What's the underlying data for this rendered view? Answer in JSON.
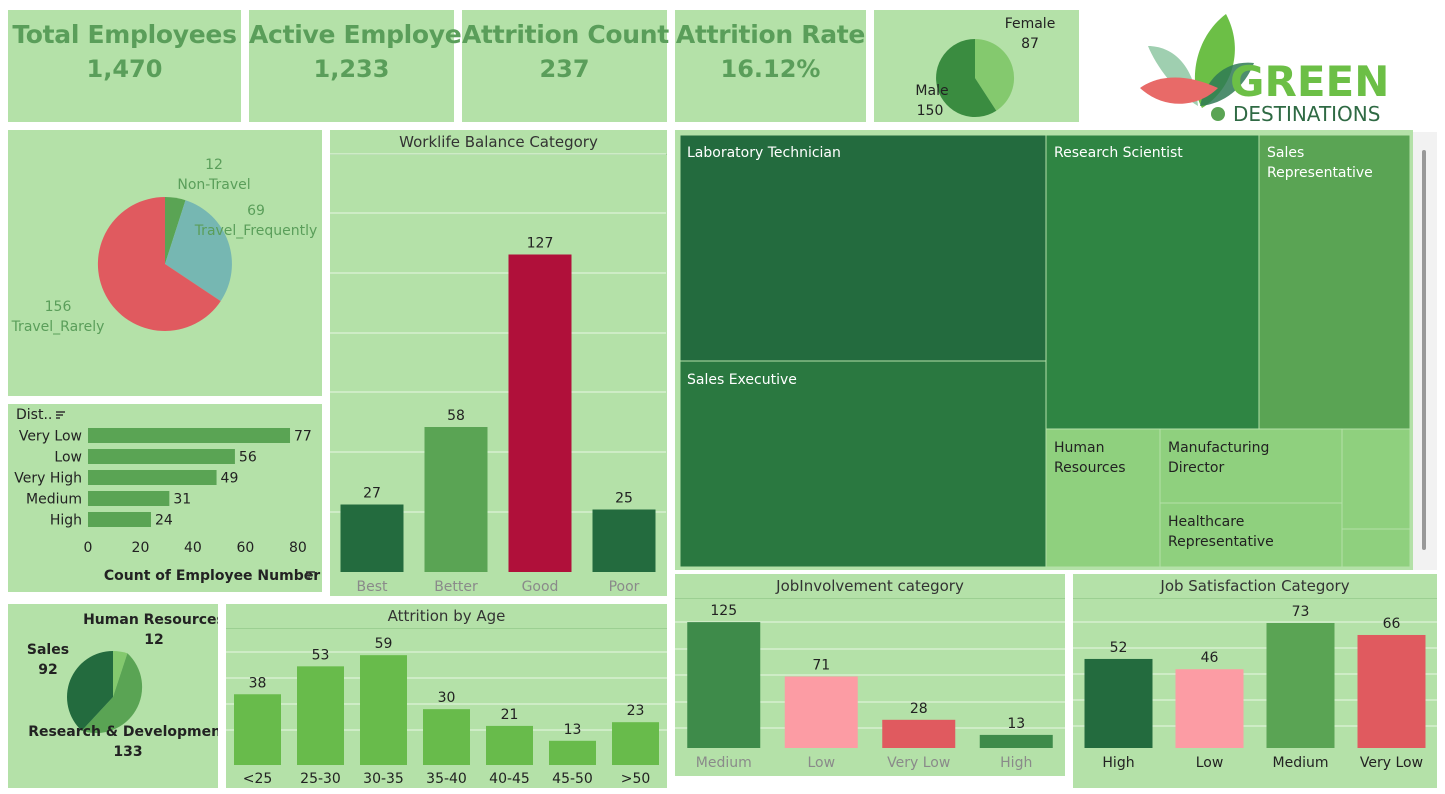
{
  "kpis": [
    {
      "title": "Total Employees",
      "value": "1,470"
    },
    {
      "title": "Active Employees",
      "value": "1,233"
    },
    {
      "title": "Attrition Count",
      "value": "237"
    },
    {
      "title": "Attrition Rate",
      "value": "16.12%"
    }
  ],
  "gender": {
    "female_label": "Female",
    "female_value": "87",
    "male_label": "Male",
    "male_value": "150"
  },
  "logo": {
    "line1": "GREEN",
    "line2": "DESTINATIONS"
  },
  "travel": {
    "slices": [
      {
        "label": "Non-Travel",
        "value": 12,
        "color": "#5aa454"
      },
      {
        "label": "Travel_Frequently",
        "value": 69,
        "color": "#76b7b2"
      },
      {
        "label": "Travel_Rarely",
        "value": 156,
        "color": "#e05a5f"
      }
    ],
    "v12": "12",
    "l12": "Non-Travel",
    "v69": "69",
    "l69": "Travel_Frequently",
    "v156": "156",
    "l156": "Travel_Rarely"
  },
  "distance": {
    "header": "Dist..",
    "xlabel": "Count of Employee Number",
    "ticks": [
      "0",
      "20",
      "40",
      "60",
      "80"
    ],
    "xlim": [
      0,
      85
    ],
    "color": "#5aa454"
  },
  "worklife": {
    "title": "Worklife Balance Category"
  },
  "treemap": {
    "labels": {
      "lab_tech": "Laboratory Technician",
      "res_sci": "Research Scientist",
      "sales_rep": "Sales Representative",
      "sales_exec": "Sales Executive",
      "hr": "Human Resources",
      "mfg_dir": "Manufacturing Director",
      "health_rep": "Healthcare Representative"
    }
  },
  "department": {
    "hr_label": "Human Resources",
    "hr_value": "12",
    "sales_label": "Sales",
    "sales_value": "92",
    "rd_label": "Research & Development",
    "rd_value": "133"
  },
  "age": {
    "title": "Attrition by Age"
  },
  "involvement": {
    "title": "JobInvolvement category"
  },
  "satisfaction": {
    "title": "Job Satisfaction Category"
  },
  "chart_data": [
    {
      "type": "pie",
      "title": "",
      "categories": [
        "Female",
        "Male"
      ],
      "values": [
        87,
        150
      ]
    },
    {
      "type": "pie",
      "title": "",
      "categories": [
        "Non-Travel",
        "Travel_Frequently",
        "Travel_Rarely"
      ],
      "values": [
        12,
        69,
        156
      ]
    },
    {
      "type": "bar",
      "orientation": "horizontal",
      "title": "",
      "categories": [
        "Very Low",
        "Low",
        "Very High",
        "Medium",
        "High"
      ],
      "values": [
        77,
        56,
        49,
        31,
        24
      ],
      "xlabel": "Count of Employee Number",
      "xlim": [
        0,
        85
      ],
      "grid": false
    },
    {
      "type": "bar",
      "title": "Worklife Balance Category",
      "categories": [
        "Best",
        "Better",
        "Good",
        "Poor"
      ],
      "values": [
        27,
        58,
        127,
        25
      ],
      "colors": [
        "#236b3e",
        "#5aa454",
        "#b0103a",
        "#236b3e"
      ],
      "ylim": [
        0,
        140
      ],
      "grid": true
    },
    {
      "type": "pie",
      "title": "",
      "categories": [
        "Human Resources",
        "Sales",
        "Research & Development"
      ],
      "values": [
        12,
        92,
        133
      ]
    },
    {
      "type": "bar",
      "title": "Attrition by Age",
      "categories": [
        "<25",
        "25-30",
        "30-35",
        "35-40",
        "40-45",
        "45-50",
        ">50"
      ],
      "values": [
        38,
        53,
        59,
        30,
        21,
        13,
        23
      ],
      "color": "#68bb4b",
      "ylim": [
        0,
        65
      ],
      "grid": true
    },
    {
      "type": "bar",
      "title": "JobInvolvement category",
      "categories": [
        "Medium",
        "Low",
        "Very Low",
        "High"
      ],
      "values": [
        125,
        71,
        28,
        13
      ],
      "colors": [
        "#3e8b4a",
        "#fc9ca4",
        "#e05a5f",
        "#3e8b4a"
      ],
      "ylim": [
        0,
        140
      ],
      "grid": true
    },
    {
      "type": "bar",
      "title": "Job Satisfaction Category",
      "categories": [
        "High",
        "Low",
        "Medium",
        "Very Low"
      ],
      "values": [
        52,
        46,
        73,
        66
      ],
      "colors": [
        "#236b3e",
        "#fc9ca4",
        "#5aa454",
        "#e05a5f"
      ],
      "ylim": [
        0,
        80
      ],
      "grid": true
    }
  ]
}
